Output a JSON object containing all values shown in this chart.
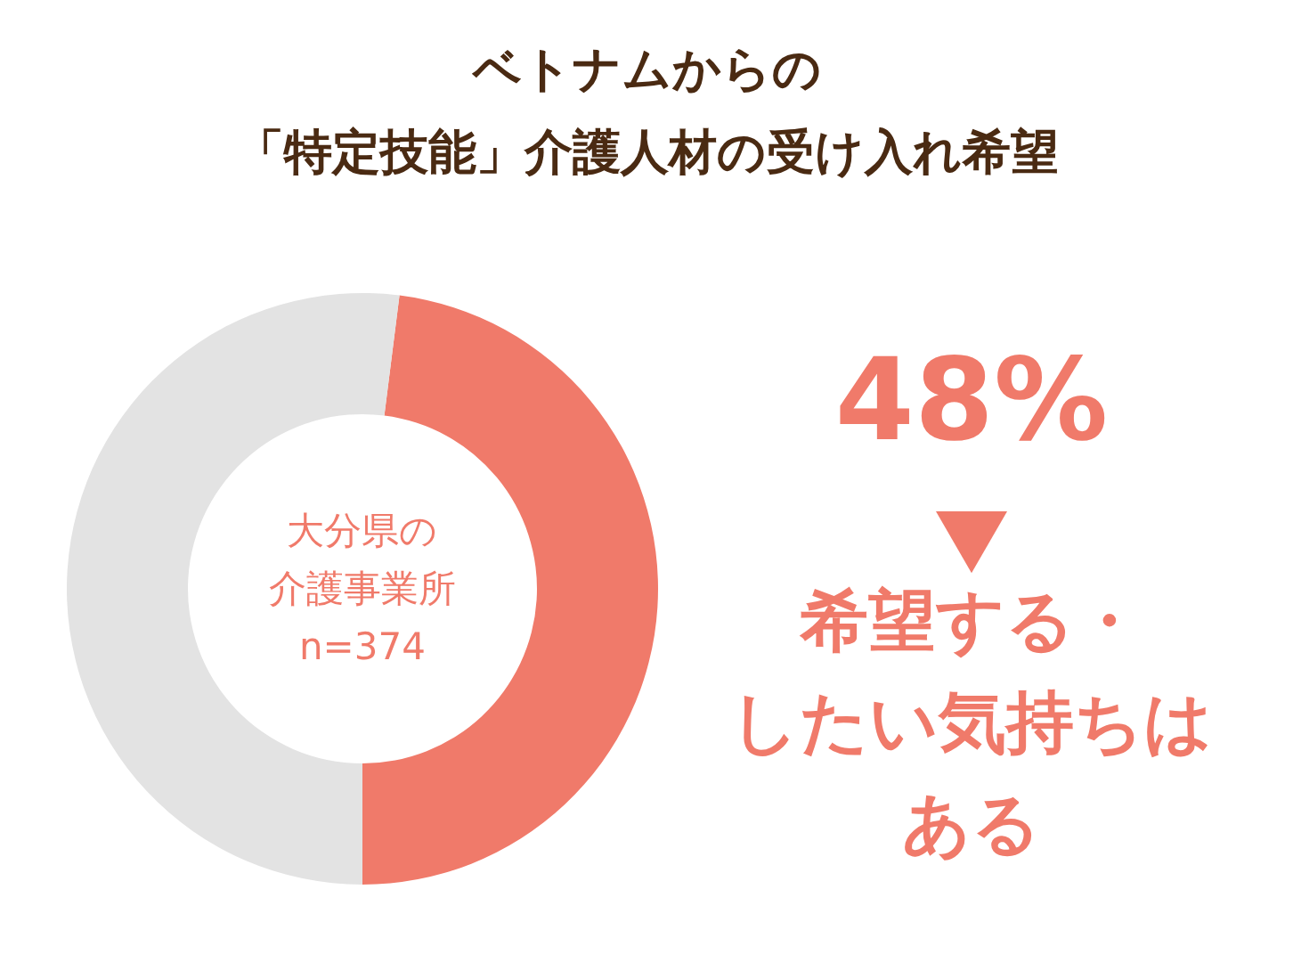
{
  "chart_data": {
    "type": "donut",
    "title": "ベトナムからの「特定技能」介護人材の受け入れ希望",
    "categories": [
      "希望する・したい気持ちはある",
      null
    ],
    "values": [
      48,
      52
    ],
    "colors": [
      "#f07a6a",
      "#e3e3e3"
    ],
    "value_labels": [
      "48%",
      null
    ],
    "annotations": [
      "大分県の介護事業所\nn=374"
    ]
  }
}
